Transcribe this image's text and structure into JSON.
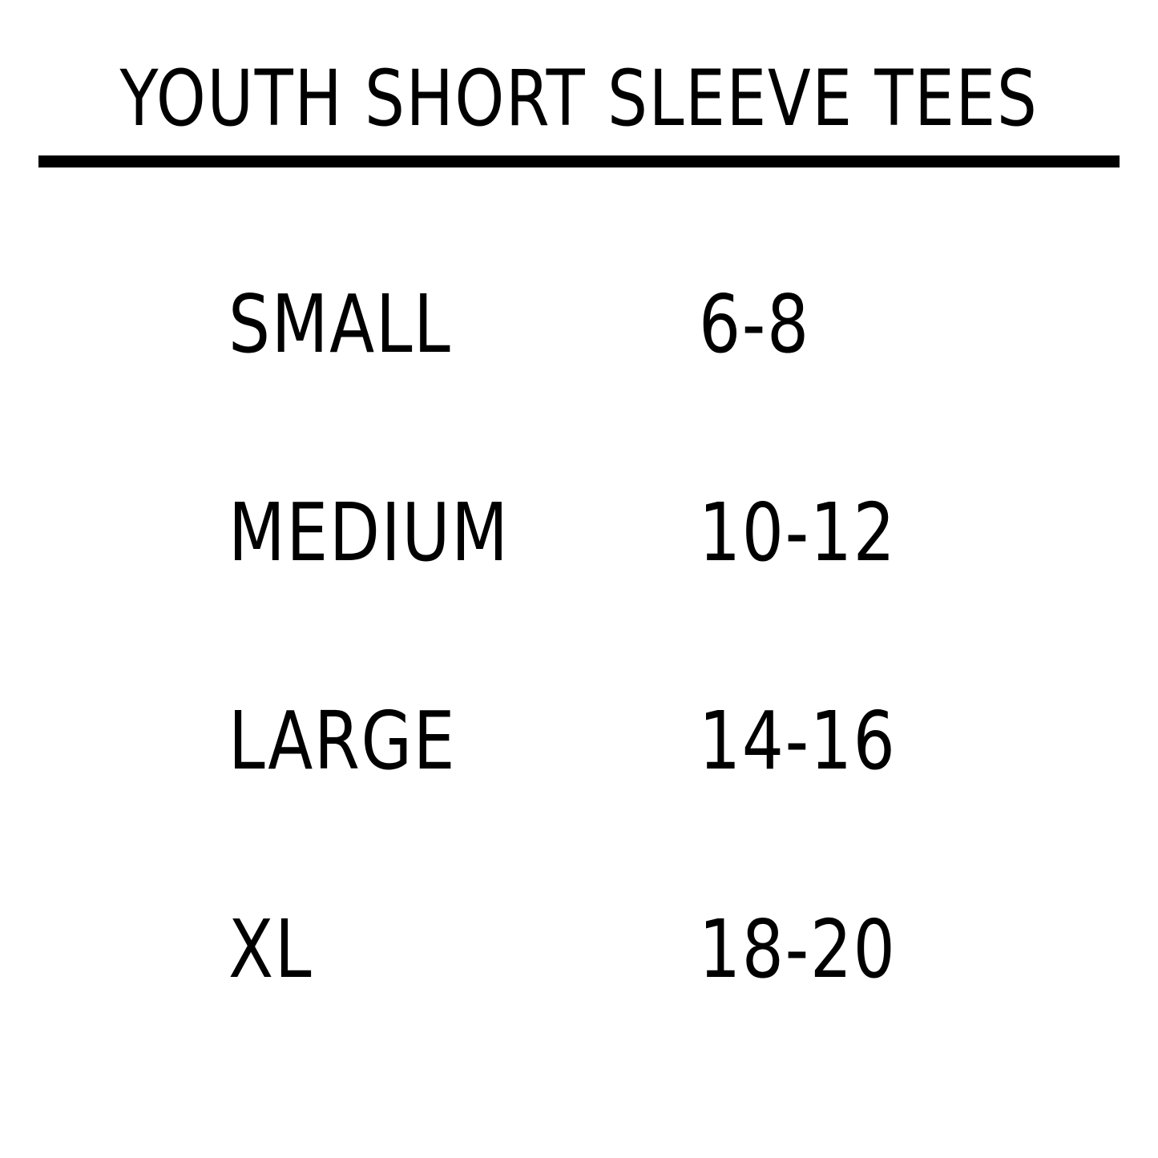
{
  "header": {
    "title": "YOUTH SHORT SLEEVE TEES"
  },
  "table": {
    "rows": [
      [
        "SMALL",
        "6-8"
      ],
      [
        "MEDIUM",
        "10-12"
      ],
      [
        "LARGE",
        "14-16"
      ],
      [
        "XL",
        "18-20"
      ]
    ]
  }
}
